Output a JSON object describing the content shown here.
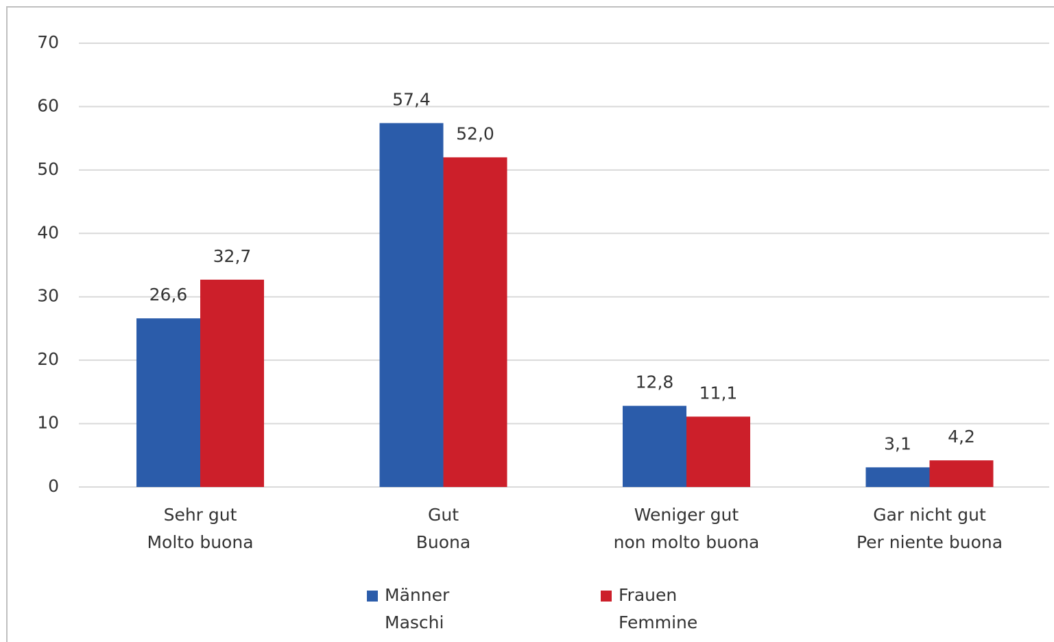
{
  "chart_data": {
    "type": "bar",
    "categories": [
      [
        "Sehr gut",
        "Molto buona"
      ],
      [
        "Gut",
        "Buona"
      ],
      [
        "Weniger gut",
        "non molto buona"
      ],
      [
        "Gar nicht gut",
        "Per niente buona"
      ]
    ],
    "series": [
      {
        "name": [
          "Männer",
          "Maschi"
        ],
        "color": "#2b5caa",
        "values": [
          26.6,
          57.4,
          12.8,
          3.1
        ],
        "value_labels": [
          "26,6",
          "57,4",
          "12,8",
          "3,1"
        ]
      },
      {
        "name": [
          "Frauen",
          "Femmine"
        ],
        "color": "#cc1f2a",
        "values": [
          32.7,
          52.0,
          11.1,
          4.2
        ],
        "value_labels": [
          "32,7",
          "52,0",
          "11,1",
          "4,2"
        ]
      }
    ],
    "ylim": [
      0,
      70
    ],
    "yticks": [
      0,
      10,
      20,
      30,
      40,
      50,
      60,
      70
    ],
    "grid": true,
    "legend": "bottom"
  }
}
